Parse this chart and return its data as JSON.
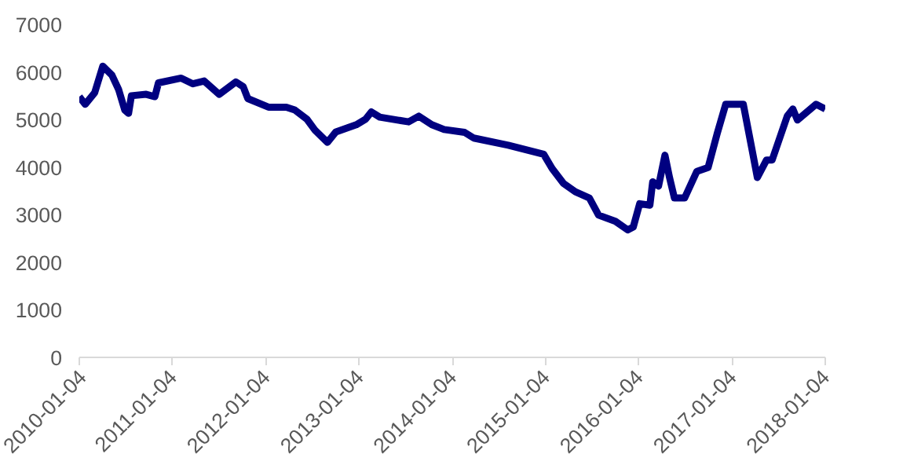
{
  "chart_data": {
    "type": "line",
    "grid": false,
    "ylim": [
      0,
      7000
    ],
    "yticks": [
      0,
      1000,
      2000,
      3000,
      4000,
      5000,
      6000,
      7000
    ],
    "xlim": [
      "2010-01-04",
      "2018-01-04"
    ],
    "xticks": [
      "2010-01-04",
      "2011-01-04",
      "2012-01-04",
      "2013-01-04",
      "2014-01-04",
      "2015-01-04",
      "2016-01-04",
      "2017-01-04",
      "2018-01-04"
    ],
    "series": [
      {
        "color": "#000080",
        "x": [
          "2010-01-04",
          "2010-01-27",
          "2010-03-05",
          "2010-04-06",
          "2010-05-12",
          "2010-06-07",
          "2010-07-01",
          "2010-07-16",
          "2010-07-27",
          "2010-09-23",
          "2010-10-27",
          "2010-11-10",
          "2011-02-07",
          "2011-03-25",
          "2011-05-08",
          "2011-07-06",
          "2011-09-09",
          "2011-10-08",
          "2011-10-26",
          "2012-01-15",
          "2012-03-25",
          "2012-04-27",
          "2012-06-13",
          "2012-07-16",
          "2012-09-02",
          "2012-10-05",
          "2012-12-24",
          "2013-01-30",
          "2013-02-21",
          "2013-03-26",
          "2013-07-17",
          "2013-08-26",
          "2013-10-16",
          "2013-12-03",
          "2014-02-21",
          "2014-03-29",
          "2014-08-11",
          "2014-12-28",
          "2015-01-30",
          "2015-03-15",
          "2015-05-01",
          "2015-06-25",
          "2015-07-31",
          "2015-10-05",
          "2015-11-22",
          "2015-12-14",
          "2016-01-08",
          "2016-02-17",
          "2016-02-28",
          "2016-03-22",
          "2016-04-16",
          "2016-05-04",
          "2016-05-23",
          "2016-07-02",
          "2016-08-19",
          "2016-10-02",
          "2016-11-07",
          "2016-12-10",
          "2017-02-17",
          "2017-03-22",
          "2017-04-13",
          "2017-05-19",
          "2017-06-10",
          "2017-08-08",
          "2017-08-30",
          "2017-09-17",
          "2017-11-29",
          "2018-01-04"
        ],
        "values": [
          5480,
          5320,
          5560,
          6120,
          5930,
          5630,
          5200,
          5130,
          5500,
          5530,
          5480,
          5770,
          5870,
          5750,
          5810,
          5530,
          5790,
          5690,
          5440,
          5260,
          5260,
          5200,
          5010,
          4770,
          4520,
          4740,
          4890,
          5010,
          5160,
          5050,
          4950,
          5070,
          4890,
          4790,
          4730,
          4610,
          4460,
          4270,
          3970,
          3660,
          3480,
          3350,
          2990,
          2860,
          2680,
          2740,
          3230,
          3200,
          3690,
          3600,
          4250,
          3780,
          3350,
          3350,
          3910,
          3990,
          4710,
          5320,
          5320,
          4400,
          3780,
          4150,
          4150,
          5070,
          5220,
          4990,
          5320,
          5220
        ]
      }
    ]
  }
}
